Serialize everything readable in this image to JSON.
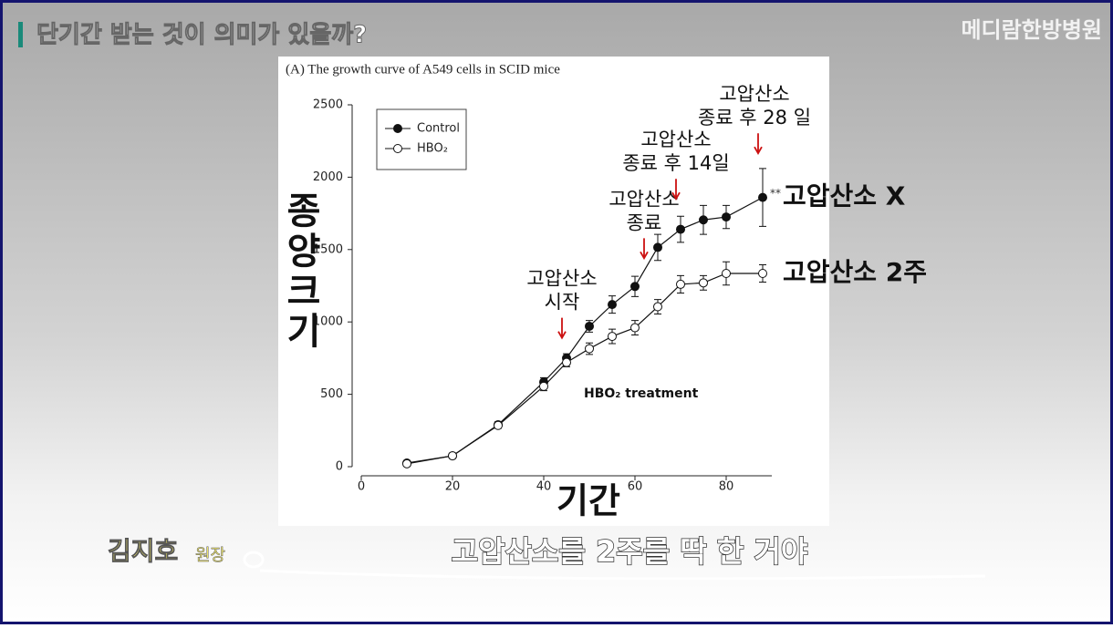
{
  "header": {
    "title": "단기간 받는 것이 의미가 있을까?",
    "logo": "메디람한방병원"
  },
  "caption": {
    "speaker": "김지호",
    "role": "원장",
    "subtitle": "고압산소를 2주를 딱 한 거야"
  },
  "chart_data": {
    "type": "line",
    "title": "(A) The growth curve of A549 cells in SCID mice",
    "x_label": "기간",
    "y_label": "종양크기",
    "x": [
      10,
      20,
      30,
      40,
      45,
      50,
      55,
      60,
      65,
      70,
      75,
      80,
      88
    ],
    "series": [
      {
        "name": "Control",
        "color": "#111111",
        "marker": "filled",
        "label": "고압산소 X",
        "significance": "**",
        "values": [
          25,
          75,
          290,
          585,
          750,
          970,
          1120,
          1245,
          1515,
          1640,
          1705,
          1725,
          1860
        ],
        "errors": [
          10,
          15,
          20,
          30,
          30,
          40,
          60,
          70,
          90,
          90,
          100,
          80,
          200
        ]
      },
      {
        "name": "HBO₂",
        "color": "#111111",
        "marker": "open",
        "label": "고압산소 2주",
        "values": [
          20,
          75,
          285,
          555,
          720,
          815,
          900,
          960,
          1105,
          1260,
          1270,
          1335,
          1335
        ],
        "errors": [
          10,
          15,
          20,
          30,
          30,
          40,
          50,
          50,
          50,
          60,
          50,
          80,
          60
        ]
      }
    ],
    "xlim": [
      0,
      90
    ],
    "xticks": [
      0,
      20,
      40,
      60,
      80
    ],
    "ylim": [
      0,
      2500
    ],
    "yticks": [
      0,
      500,
      1000,
      1500,
      2000,
      2500
    ],
    "region_label": "HBO₂ treatment",
    "annotations": [
      {
        "text": [
          "고압산소",
          "시작"
        ],
        "x": 44,
        "y": 890,
        "color": "#cc1111"
      },
      {
        "text": [
          "고압산소",
          "종료"
        ],
        "x": 62,
        "y": 1440,
        "color": "#cc1111"
      },
      {
        "text": [
          "고압산소",
          "종료 후 14일"
        ],
        "x": 69,
        "y": 1850,
        "color": "#cc1111"
      },
      {
        "text": [
          "고압산소",
          "종료 후 28 일"
        ],
        "x": 87,
        "y": 2165,
        "color": "#cc1111"
      }
    ]
  }
}
